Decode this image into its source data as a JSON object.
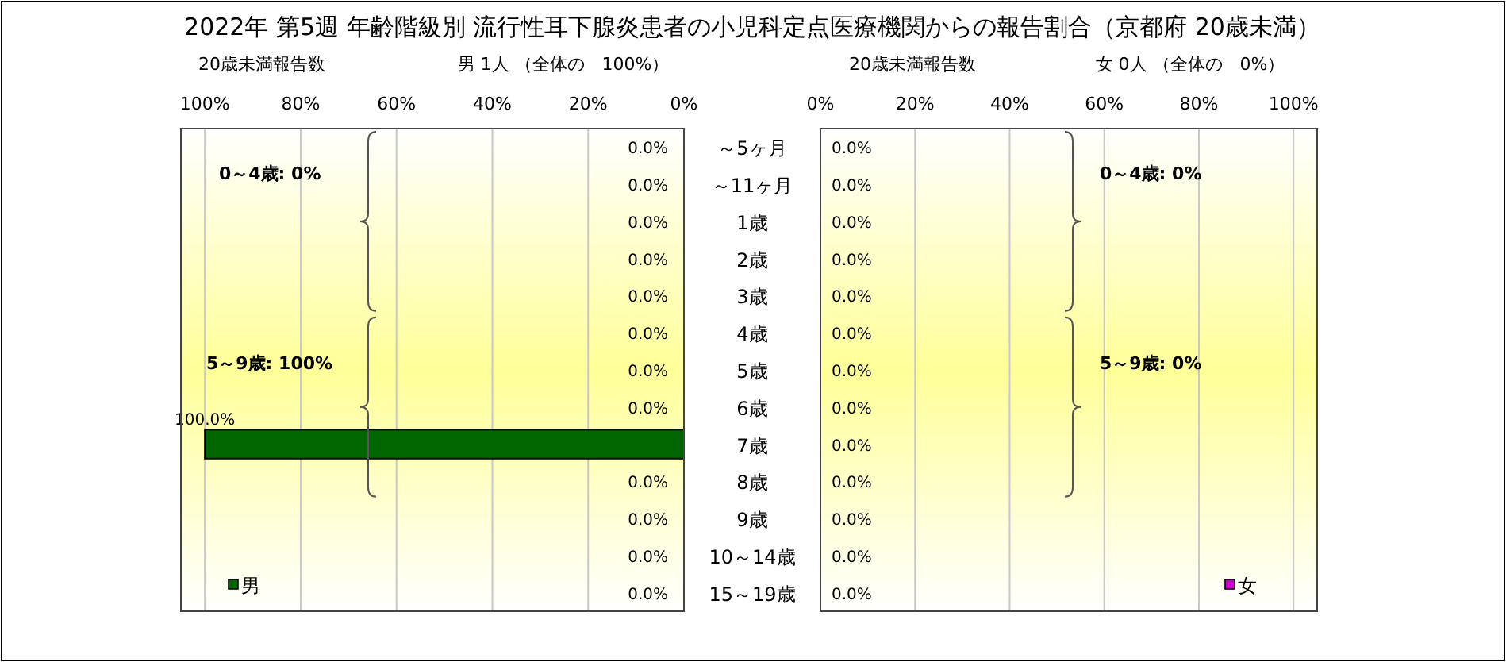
{
  "chart_data": [
    {
      "type": "bar",
      "orientation": "horizontal",
      "title": "2022年 第5週 年齢階級別 流行性耳下腺炎患者の小児科定点医療機関からの報告割合（京都府 20歳未満）",
      "subtitle": "男  1人 （全体の　100%）",
      "xlabel": "20歳未満報告数",
      "categories": [
        "～5ヶ月",
        "～11ヶ月",
        "1歳",
        "2歳",
        "3歳",
        "4歳",
        "5歳",
        "6歳",
        "7歳",
        "8歳",
        "9歳",
        "10～14歳",
        "15～19歳"
      ],
      "series": [
        {
          "name": "男",
          "color": "#006600",
          "values": [
            0,
            0,
            0,
            0,
            0,
            0,
            0,
            0,
            100,
            0,
            0,
            0,
            0
          ],
          "value_labels": [
            "0.0%",
            "0.0%",
            "0.0%",
            "0.0%",
            "0.0%",
            "0.0%",
            "0.0%",
            "0.0%",
            "100.0%",
            "0.0%",
            "0.0%",
            "0.0%",
            "0.0%"
          ]
        }
      ],
      "xlim": [
        105,
        0
      ],
      "xticks": [
        {
          "value": 100,
          "label": "100%"
        },
        {
          "value": 80,
          "label": "80%"
        },
        {
          "value": 60,
          "label": "60%"
        },
        {
          "value": 40,
          "label": "40%"
        },
        {
          "value": 20,
          "label": "20%"
        },
        {
          "value": 0,
          "label": "0%"
        }
      ],
      "grid": "x",
      "legend": "bottom left",
      "annotations": [
        "0～4歳: 0%",
        "5～9歳: 100%"
      ]
    },
    {
      "type": "bar",
      "orientation": "horizontal",
      "subtitle": "女  0人 （全体の　0%）",
      "xlabel": "20歳未満報告数",
      "categories": [
        null,
        null,
        null,
        null,
        null,
        null,
        null,
        null,
        null,
        null,
        null,
        null,
        null
      ],
      "series": [
        {
          "name": "女",
          "color": "#cc00cc",
          "values": [
            0,
            0,
            0,
            0,
            0,
            0,
            0,
            0,
            0,
            0,
            0,
            0,
            0
          ],
          "value_labels": [
            "0.0%",
            "0.0%",
            "0.0%",
            "0.0%",
            "0.0%",
            "0.0%",
            "0.0%",
            "0.0%",
            "0.0%",
            "0.0%",
            "0.0%",
            "0.0%",
            "0.0%"
          ]
        }
      ],
      "xlim": [
        0,
        105
      ],
      "xticks": [
        {
          "value": 0,
          "label": "0%"
        },
        {
          "value": 20,
          "label": "20%"
        },
        {
          "value": 40,
          "label": "40%"
        },
        {
          "value": 60,
          "label": "60%"
        },
        {
          "value": 80,
          "label": "80%"
        },
        {
          "value": 100,
          "label": "100%"
        }
      ],
      "grid": "x",
      "legend": "bottom right",
      "tick_labels": "x",
      "annotations": [
        "0～4歳: 0%",
        "5～9歳: 0%"
      ]
    }
  ]
}
